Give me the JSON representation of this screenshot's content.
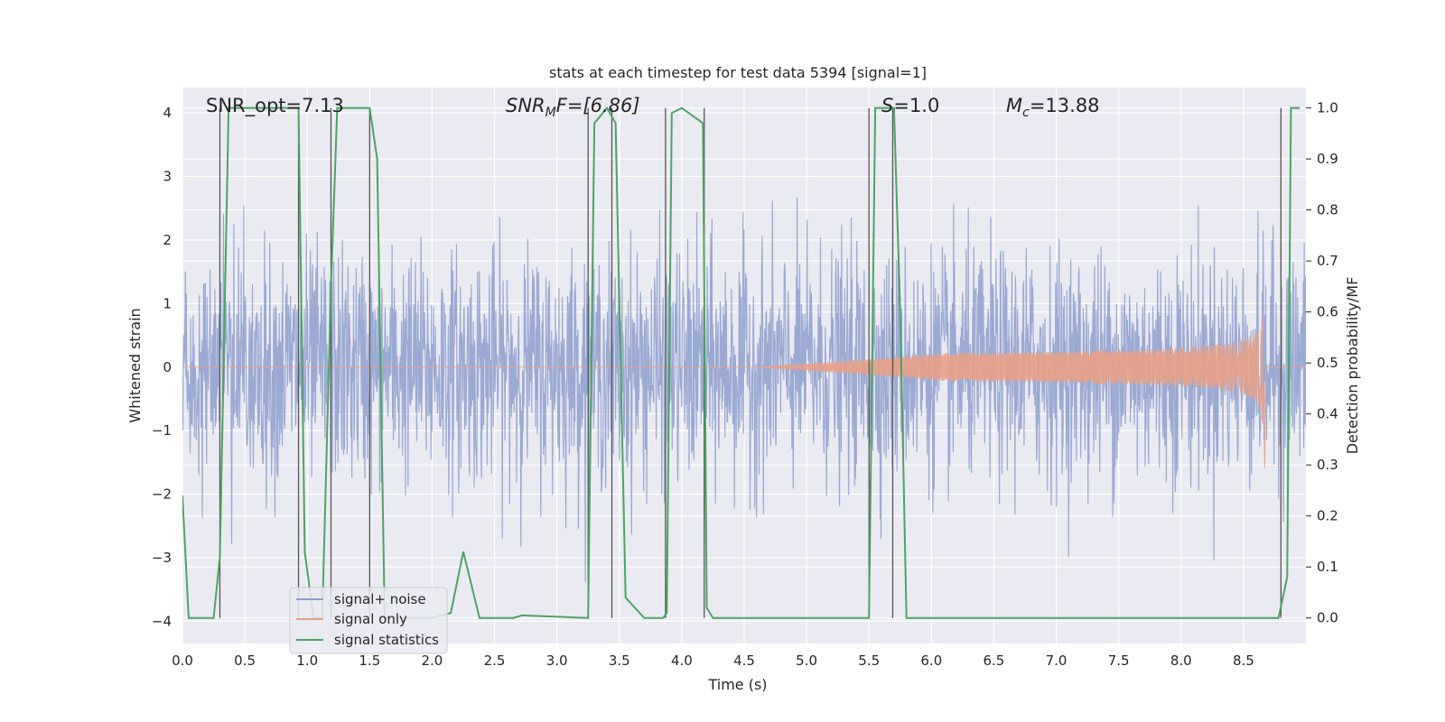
{
  "chart_data": {
    "type": "line",
    "title": "stats at each timestep for test data 5394 [signal=1]",
    "xlabel": "Time (s)",
    "ylabel": "Whitened strain",
    "ylabel_right": "Detection probability/MF",
    "xlim": [
      0.0,
      9.0
    ],
    "ylim": [
      -4.35,
      4.4
    ],
    "ylim_right": [
      -0.05,
      1.04
    ],
    "x_ticks": [
      0.0,
      0.5,
      1.0,
      1.5,
      2.0,
      2.5,
      3.0,
      3.5,
      4.0,
      4.5,
      5.0,
      5.5,
      6.0,
      6.5,
      7.0,
      7.5,
      8.0,
      8.5
    ],
    "x_tick_labels": [
      "0.0",
      "0.5",
      "1.0",
      "1.5",
      "2.0",
      "2.5",
      "3.0",
      "3.5",
      "4.0",
      "4.5",
      "5.0",
      "5.5",
      "6.0",
      "6.5",
      "7.0",
      "7.5",
      "8.0",
      "8.5"
    ],
    "y_ticks": [
      -4,
      -3,
      -2,
      -1,
      0,
      1,
      2,
      3,
      4
    ],
    "y_tick_labels": [
      "−4",
      "−3",
      "−2",
      "−1",
      "0",
      "1",
      "2",
      "3",
      "4"
    ],
    "y_right_ticks": [
      0.0,
      0.1,
      0.2,
      0.3,
      0.4,
      0.5,
      0.6,
      0.7,
      0.8,
      0.9,
      1.0
    ],
    "y_right_tick_labels": [
      "0.0",
      "0.1",
      "0.2",
      "0.3",
      "0.4",
      "0.5",
      "0.6",
      "0.7",
      "0.8",
      "0.9",
      "1.0"
    ],
    "annotations": {
      "snr_opt": "SNR_opt=7.13",
      "snr_mf_main": "SNR",
      "snr_mf_sub": "M",
      "snr_mf_rest": "F=[6.86]",
      "s_main": "S",
      "s_rest": "=1.0",
      "mc_main": "M",
      "mc_sub": "c",
      "mc_rest": "=13.88"
    },
    "legend": {
      "position": "lower-left",
      "entries": [
        {
          "label": "signal+ noise",
          "color": "#8c9fcc"
        },
        {
          "label": "signal only",
          "color": "#e8a087"
        },
        {
          "label": "signal statistics",
          "color": "#4aa564"
        }
      ]
    },
    "series": [
      {
        "name": "signal+ noise",
        "color": "#8c9fcc",
        "noise_sigma": 0.9,
        "t_start": 0.0,
        "t_end": 9.0
      },
      {
        "name": "signal only",
        "color": "#e8a087",
        "chirp_start": 4.6,
        "merger": 8.66,
        "peak_amplitude": 1.1
      },
      {
        "name": "signal statistics",
        "color": "#4aa564",
        "axis": "right",
        "x": [
          0.0,
          0.05,
          0.25,
          0.3,
          0.37,
          0.93,
          0.98,
          1.05,
          1.12,
          1.19,
          1.24,
          1.5,
          1.56,
          1.62,
          2.0,
          2.15,
          2.25,
          2.38,
          2.65,
          2.72,
          3.25,
          3.3,
          3.4,
          3.47,
          3.55,
          3.7,
          3.85,
          3.88,
          3.92,
          4.0,
          4.17,
          4.2,
          4.25,
          5.5,
          5.55,
          5.7,
          5.75,
          5.8,
          8.78,
          8.85,
          8.88,
          8.95
        ],
        "y": [
          0.24,
          0.0,
          0.0,
          0.12,
          1.0,
          1.0,
          0.13,
          0.0,
          0.0,
          0.65,
          1.0,
          1.0,
          0.9,
          0.0,
          0.0,
          0.01,
          0.13,
          0.0,
          0.0,
          0.005,
          0.0,
          0.97,
          1.0,
          0.97,
          0.04,
          0.0,
          0.0,
          0.01,
          0.99,
          1.0,
          0.97,
          0.02,
          0.0,
          0.0,
          1.0,
          1.0,
          0.6,
          0.0,
          0.0,
          0.08,
          1.0,
          1.0
        ]
      }
    ],
    "vertical_lines_x": [
      0.3,
      0.93,
      1.19,
      1.5,
      3.25,
      3.44,
      3.87,
      4.18,
      5.5,
      5.69,
      8.8
    ]
  }
}
